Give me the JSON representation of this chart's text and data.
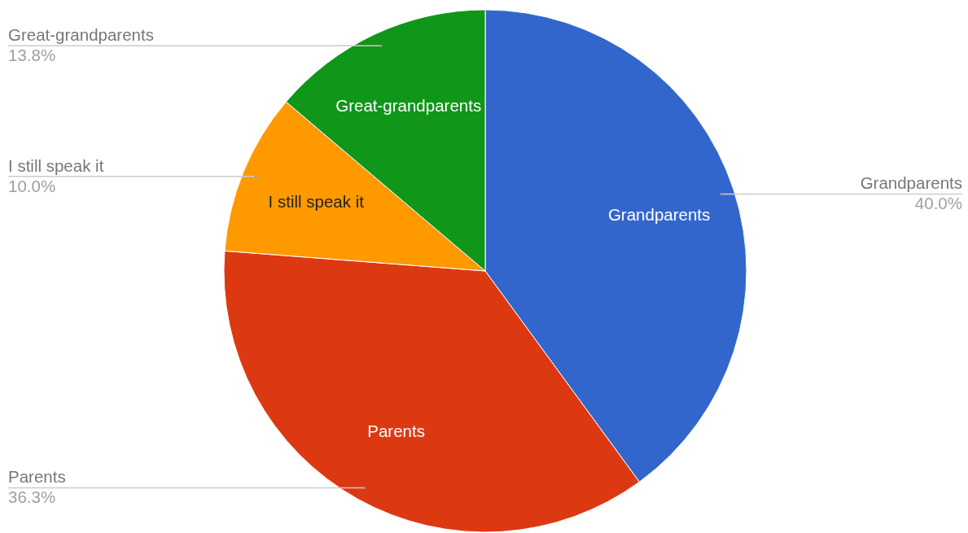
{
  "chart_data": {
    "type": "pie",
    "categories": [
      "Grandparents",
      "Parents",
      "I still speak it",
      "Great-grandparents"
    ],
    "values": [
      40.0,
      36.3,
      10.0,
      13.8
    ],
    "colors": [
      "#3366cc",
      "#dc3912",
      "#ff9900",
      "#109618"
    ],
    "value_labels": [
      "40.0%",
      "36.3%",
      "10.0%",
      "13.8%"
    ]
  }
}
